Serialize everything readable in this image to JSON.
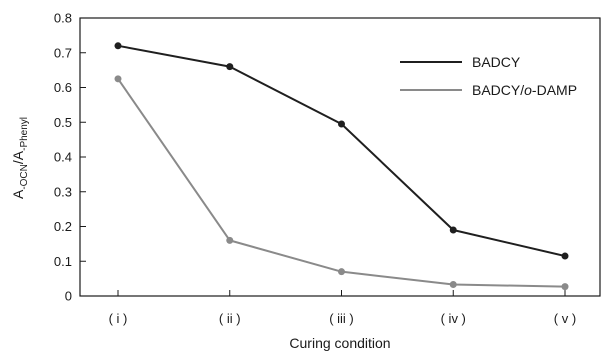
{
  "chart_data": {
    "type": "line",
    "title": "",
    "xlabel": "Curing condition",
    "ylabel_parts": {
      "main1": "A",
      "sub1": "-OCN",
      "sep": "/A",
      "sub2": "-Phenyl"
    },
    "categories": [
      "( i )",
      "( ii )",
      "( iii )",
      "( iv )",
      "( v )"
    ],
    "ylim": [
      0,
      0.8
    ],
    "yticks": [
      "0",
      "0.1",
      "0.2",
      "0.3",
      "0.4",
      "0.5",
      "0.6",
      "0.7",
      "0.8"
    ],
    "ytick_values": [
      0,
      0.1,
      0.2,
      0.3,
      0.4,
      0.5,
      0.6,
      0.7,
      0.8
    ],
    "grid": false,
    "legend_placement": "top-right",
    "series": [
      {
        "name": "BADCY",
        "color": "#1f1f1f",
        "values": [
          0.72,
          0.66,
          0.495,
          0.19,
          0.115
        ]
      },
      {
        "name_parts": {
          "pre": "BADCY/",
          "italic": "o",
          "post": "-DAMP"
        },
        "color": "#8a8a8a",
        "values": [
          0.625,
          0.16,
          0.07,
          0.033,
          0.027
        ]
      }
    ]
  }
}
